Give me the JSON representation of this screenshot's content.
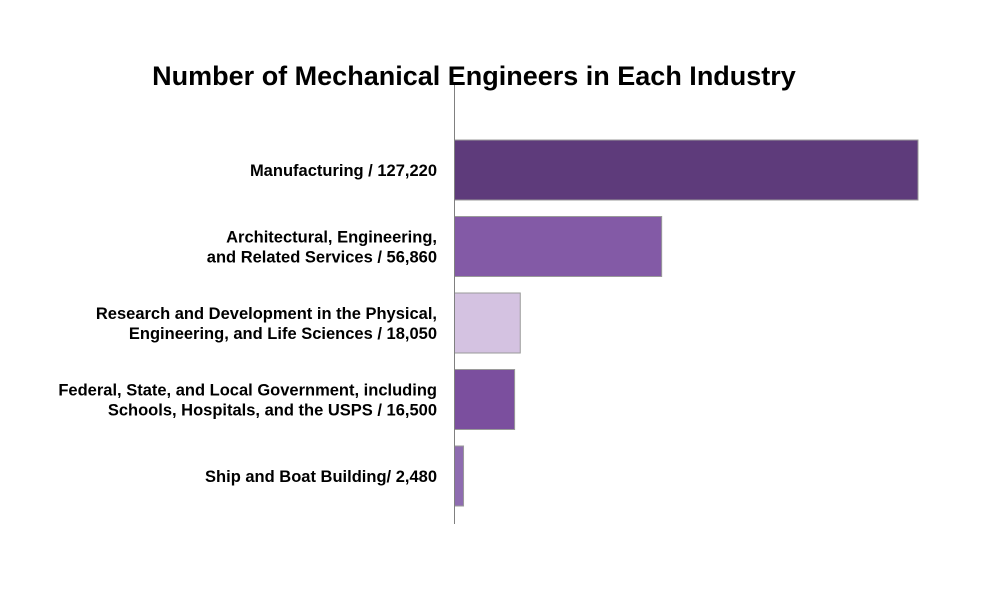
{
  "chart_data": {
    "type": "bar",
    "orientation": "horizontal",
    "title": "Number of Mechanical Engineers in Each Industry",
    "xlabel": "",
    "ylabel": "",
    "xlim": [
      0,
      127220
    ],
    "grid": false,
    "legend": "none",
    "categories": [
      {
        "name": "Manufacturing",
        "label_lines": [
          "Manufacturing / 127,220"
        ],
        "value": 127220,
        "color": "#5e3b7b"
      },
      {
        "name": "Architectural, Engineering, and Related Services",
        "label_lines": [
          "Architectural, Engineering,",
          "and Related Services / 56,860"
        ],
        "value": 56860,
        "color": "#835aa6"
      },
      {
        "name": "Research and Development in the Physical, Engineering, and Life Sciences",
        "label_lines": [
          "Research and Development in the Physical,",
          "Engineering, and Life Sciences / 18,050"
        ],
        "value": 18050,
        "color": "#d4c2e1"
      },
      {
        "name": "Federal, State, and Local Government, including Schools, Hospitals, and the USPS",
        "label_lines": [
          "Federal, State, and Local Government, including",
          "Schools, Hospitals, and the USPS / 16,500"
        ],
        "value": 16500,
        "color": "#7b4f9e"
      },
      {
        "name": "Ship and Boat Building",
        "label_lines": [
          "Ship and Boat Building/ 2,480"
        ],
        "value": 2480,
        "color": "#8e6cb0"
      }
    ]
  }
}
